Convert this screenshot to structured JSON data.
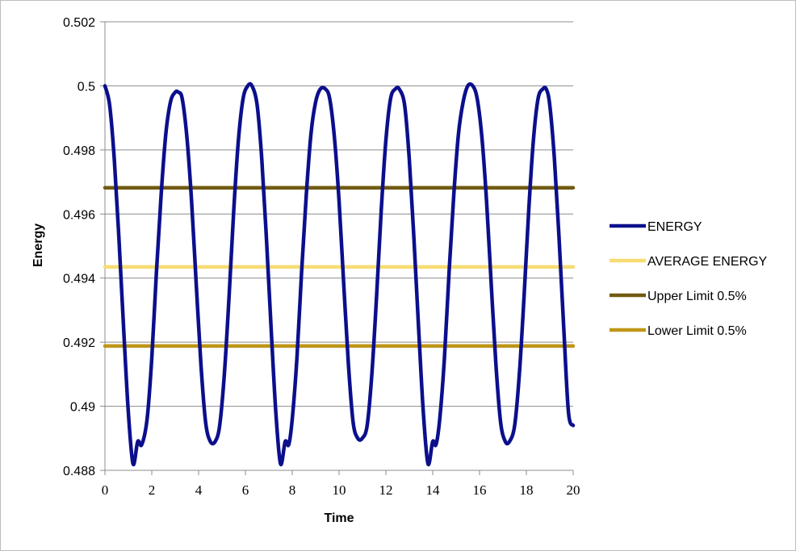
{
  "chart_data": {
    "type": "line",
    "xlabel": "Time",
    "ylabel": "Energy",
    "xlim": [
      0,
      20
    ],
    "ylim": [
      0.488,
      0.502
    ],
    "x_ticks": [
      "0",
      "2",
      "4",
      "6",
      "8",
      "10",
      "12",
      "14",
      "16",
      "18",
      "20"
    ],
    "y_ticks": [
      "0.488",
      "0.49",
      "0.492",
      "0.494",
      "0.496",
      "0.498",
      "0.5",
      "0.502"
    ],
    "grid": "horizontal",
    "legend_position": "right",
    "series": [
      {
        "name": "ENERGY",
        "color": "#0b0f8c",
        "x": [
          0,
          0.2,
          0.4,
          0.6,
          0.8,
          1.0,
          1.2,
          1.4,
          1.57,
          1.8,
          2.0,
          2.2,
          2.4,
          2.6,
          2.8,
          3.0,
          3.14,
          3.3,
          3.5,
          3.7,
          3.9,
          4.1,
          4.3,
          4.5,
          4.71,
          4.9,
          5.1,
          5.3,
          5.5,
          5.7,
          5.9,
          6.1,
          6.28,
          6.5,
          6.7,
          6.9,
          7.1,
          7.3,
          7.5,
          7.7,
          7.85,
          8.0,
          8.2,
          8.4,
          8.6,
          8.8,
          9.0,
          9.2,
          9.42,
          9.6,
          9.8,
          10.0,
          10.2,
          10.4,
          10.6,
          10.8,
          10.99,
          11.2,
          11.4,
          11.6,
          11.8,
          12.0,
          12.2,
          12.4,
          12.57,
          12.8,
          13.0,
          13.2,
          13.4,
          13.6,
          13.8,
          14.0,
          14.14,
          14.3,
          14.5,
          14.7,
          14.9,
          15.1,
          15.3,
          15.5,
          15.71,
          15.9,
          16.1,
          16.3,
          16.5,
          16.7,
          16.9,
          17.1,
          17.28,
          17.5,
          17.7,
          17.9,
          18.1,
          18.3,
          18.5,
          18.7,
          18.85,
          19.0,
          19.2,
          19.4,
          19.6,
          19.8,
          20.0
        ],
        "y": [
          0.5,
          0.4994,
          0.4977,
          0.4952,
          0.4924,
          0.4898,
          0.4882,
          0.4889,
          0.4888,
          0.4896,
          0.4915,
          0.4942,
          0.4966,
          0.4985,
          0.4995,
          0.4998,
          0.4998,
          0.4996,
          0.4984,
          0.4964,
          0.4938,
          0.4913,
          0.4895,
          0.4889,
          0.4889,
          0.4894,
          0.491,
          0.4934,
          0.4961,
          0.4983,
          0.4996,
          0.5,
          0.5,
          0.4994,
          0.4977,
          0.4952,
          0.4924,
          0.4898,
          0.4882,
          0.4889,
          0.4888,
          0.4896,
          0.4915,
          0.4942,
          0.4966,
          0.4985,
          0.4995,
          0.4999,
          0.4999,
          0.4996,
          0.4984,
          0.4964,
          0.4938,
          0.4913,
          0.4895,
          0.489,
          0.489,
          0.4894,
          0.491,
          0.4934,
          0.4961,
          0.4983,
          0.4996,
          0.4999,
          0.4999,
          0.4994,
          0.4977,
          0.4952,
          0.4924,
          0.4898,
          0.4882,
          0.4889,
          0.4888,
          0.4896,
          0.4915,
          0.4942,
          0.4966,
          0.4985,
          0.4995,
          0.5,
          0.5,
          0.4996,
          0.4984,
          0.4964,
          0.4938,
          0.4913,
          0.4895,
          0.4889,
          0.4889,
          0.4894,
          0.491,
          0.4934,
          0.4961,
          0.4983,
          0.4996,
          0.4999,
          0.4999,
          0.4994,
          0.4977,
          0.4952,
          0.4924,
          0.4898,
          0.4894
        ]
      },
      {
        "name": "AVERAGE ENERGY",
        "color": "#f7dc73",
        "x": [
          0,
          20
        ],
        "y": [
          0.49435,
          0.49435
        ]
      },
      {
        "name": "Upper Limit 0.5%",
        "color": "#715a12",
        "x": [
          0,
          20
        ],
        "y": [
          0.49682,
          0.49682
        ]
      },
      {
        "name": "Lower Limit 0.5%",
        "color": "#bf9618",
        "x": [
          0,
          20
        ],
        "y": [
          0.49188,
          0.49188
        ]
      }
    ]
  }
}
